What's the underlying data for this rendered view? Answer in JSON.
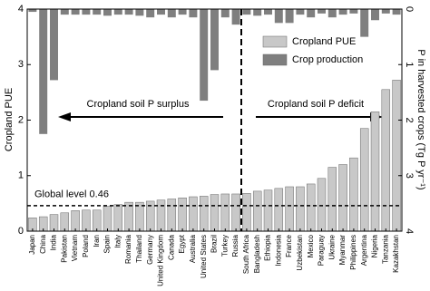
{
  "chart_data": {
    "type": "bar",
    "y_label": "Cropland PUE",
    "y2_label": "P in harvested crops (Tg P yr⁻¹)",
    "categories": [
      "Japan",
      "China",
      "India",
      "Pakistan",
      "Vietnam",
      "Poland",
      "Iran",
      "Spain",
      "Italy",
      "Romania",
      "Thailand",
      "Germany",
      "United Kingdom",
      "Canada",
      "Egypt",
      "Australia",
      "United States",
      "Brazil",
      "Turkey",
      "Russia",
      "South Africa",
      "Bangladesh",
      "Ethiopia",
      "Indonesia",
      "France",
      "Uzbekistan",
      "Mexico",
      "Paraguay",
      "Ukraine",
      "Myanmar",
      "Philippines",
      "Argentina",
      "Nigeria",
      "Tanzania",
      "Kazakhstan"
    ],
    "series": [
      {
        "name": "Cropland PUE",
        "color": "#c8c8c8",
        "values": [
          0.24,
          0.26,
          0.3,
          0.33,
          0.37,
          0.38,
          0.38,
          0.45,
          0.48,
          0.52,
          0.52,
          0.54,
          0.56,
          0.58,
          0.6,
          0.62,
          0.63,
          0.66,
          0.67,
          0.67,
          0.68,
          0.72,
          0.74,
          0.77,
          0.8,
          0.8,
          0.85,
          0.95,
          1.15,
          1.2,
          1.32,
          1.85,
          2.15,
          2.55,
          2.72
        ]
      },
      {
        "name": "Crop production",
        "color": "#7f7f7f",
        "axis": "y2",
        "values": [
          0.05,
          2.25,
          1.28,
          0.1,
          0.1,
          0.1,
          0.1,
          0.12,
          0.1,
          0.1,
          0.12,
          0.15,
          0.1,
          0.15,
          0.1,
          0.15,
          1.65,
          1.1,
          0.15,
          0.28,
          0.1,
          0.12,
          0.1,
          0.25,
          0.25,
          0.1,
          0.15,
          0.08,
          0.15,
          0.1,
          0.08,
          0.5,
          0.2,
          0.08,
          0.1
        ]
      }
    ],
    "ylim": [
      0,
      4
    ],
    "yticks": [
      0,
      1,
      2,
      3,
      4
    ],
    "y2lim": [
      0,
      4
    ],
    "y2ticks": [
      0,
      1,
      2,
      3,
      4
    ],
    "y2_inverted": true,
    "reference_line": {
      "value": 0.46,
      "label": "Global level 0.46"
    },
    "annotations": [
      "Cropland soil P surplus",
      "Cropland soil P deficit"
    ],
    "legend": "upper right"
  }
}
